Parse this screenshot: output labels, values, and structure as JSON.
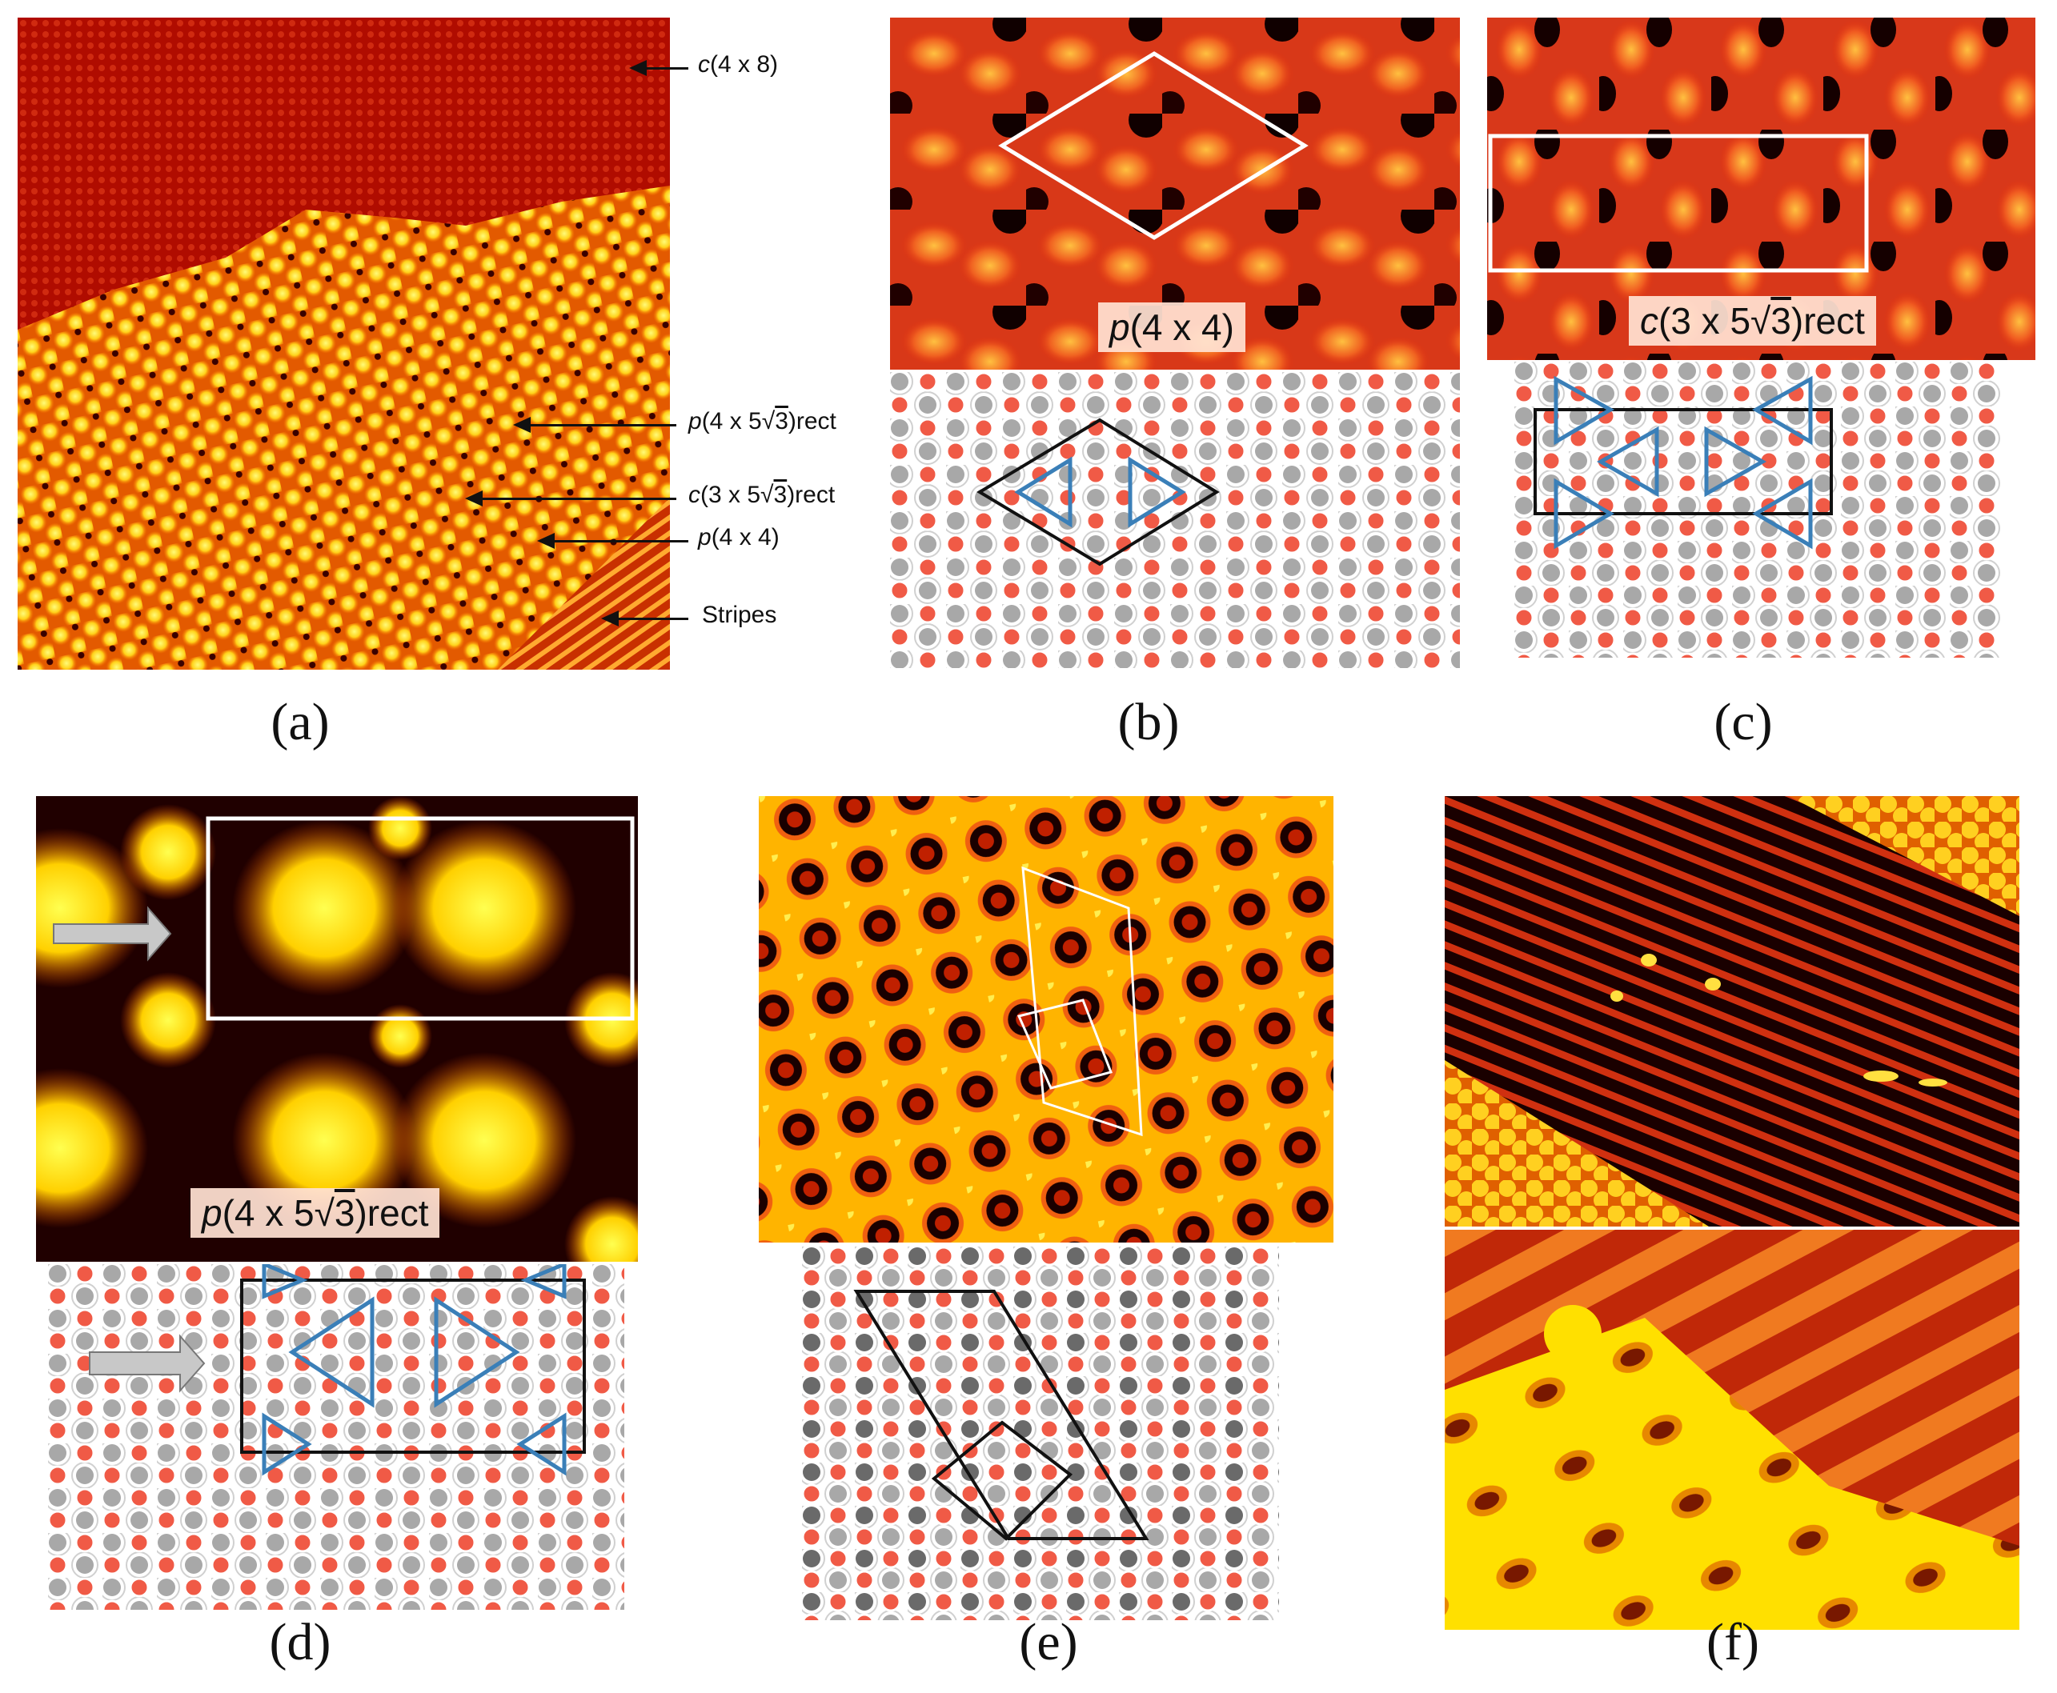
{
  "figure": {
    "panels": [
      {
        "id": "a",
        "caption": "(a)"
      },
      {
        "id": "b",
        "caption": "(b)",
        "label": {
          "pre": "p",
          "body": "(4 x 4)"
        }
      },
      {
        "id": "c",
        "caption": "(c)",
        "label": {
          "pre": "c",
          "body": "(3 x 5",
          "rad": "3",
          "post": ")rect"
        }
      },
      {
        "id": "d",
        "caption": "(d)",
        "label": {
          "pre": "p",
          "body": "(4 x 5",
          "rad": "3",
          "post": ")rect"
        }
      },
      {
        "id": "e",
        "caption": "(e)"
      },
      {
        "id": "f",
        "caption": "(f)"
      }
    ],
    "annotations_a": [
      {
        "pre": "c",
        "body": "(4 x 8)",
        "rad": "",
        "post": ""
      },
      {
        "pre": "p",
        "body": "(4 x 5",
        "rad": "3",
        "post": ")rect"
      },
      {
        "pre": "c",
        "body": "(3 x 5",
        "rad": "3",
        "post": ")rect"
      },
      {
        "pre": "p",
        "body": "(4 x 4)",
        "rad": "",
        "post": ""
      },
      {
        "pre": "",
        "body": "Stripes",
        "rad": "",
        "post": ""
      }
    ]
  },
  "colors": {
    "stm_dark": "#5a0000",
    "stm_mid": "#c81400",
    "stm_bright": "#ffe640",
    "atom_red": "#f05a46",
    "atom_gray": "#a8a8a8",
    "triangle_blue": "#3a7fb8"
  }
}
